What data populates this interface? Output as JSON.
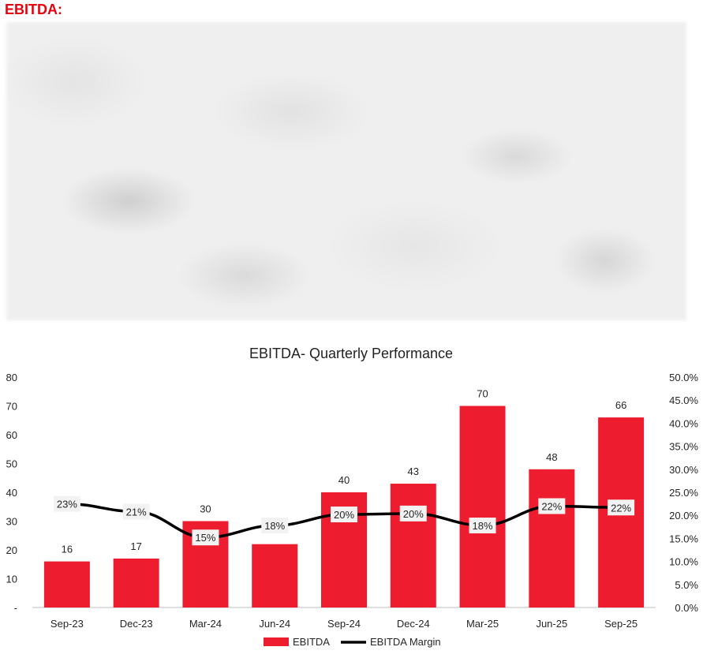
{
  "heading": "EBITDA:",
  "chart_data": {
    "type": "bar",
    "title": "EBITDA- Quarterly Performance",
    "categories": [
      "Sep-23",
      "Dec-23",
      "Mar-24",
      "Jun-24",
      "Sep-24",
      "Dec-24",
      "Mar-25",
      "Jun-25",
      "Sep-25"
    ],
    "series": [
      {
        "name": "EBITDA",
        "type": "bar",
        "axis": "left",
        "color": "#ed1c2e",
        "values": [
          16,
          17,
          30,
          22,
          40,
          43,
          70,
          48,
          66
        ],
        "data_labels": [
          "16",
          "17",
          "30",
          "",
          "40",
          "43",
          "70",
          "48",
          "66"
        ]
      },
      {
        "name": "EBITDA Margin",
        "type": "line",
        "axis": "right",
        "color": "#000000",
        "values": [
          22.5,
          20.8,
          15.2,
          17.8,
          20.2,
          20.4,
          17.8,
          22.0,
          21.7
        ],
        "data_labels": [
          "23%",
          "21%",
          "15%",
          "18%",
          "20%",
          "20%",
          "18%",
          "22%",
          "22%"
        ]
      }
    ],
    "y_left": {
      "ylim": [
        0,
        80
      ],
      "ticks": [
        "-",
        "10",
        "20",
        "30",
        "40",
        "50",
        "60",
        "70",
        "80"
      ]
    },
    "y_right": {
      "ylim": [
        0,
        50
      ],
      "ticks": [
        "0.0%",
        "5.0%",
        "10.0%",
        "15.0%",
        "20.0%",
        "25.0%",
        "30.0%",
        "35.0%",
        "40.0%",
        "45.0%",
        "50.0%"
      ]
    },
    "grid": false,
    "legend_position": "bottom"
  }
}
